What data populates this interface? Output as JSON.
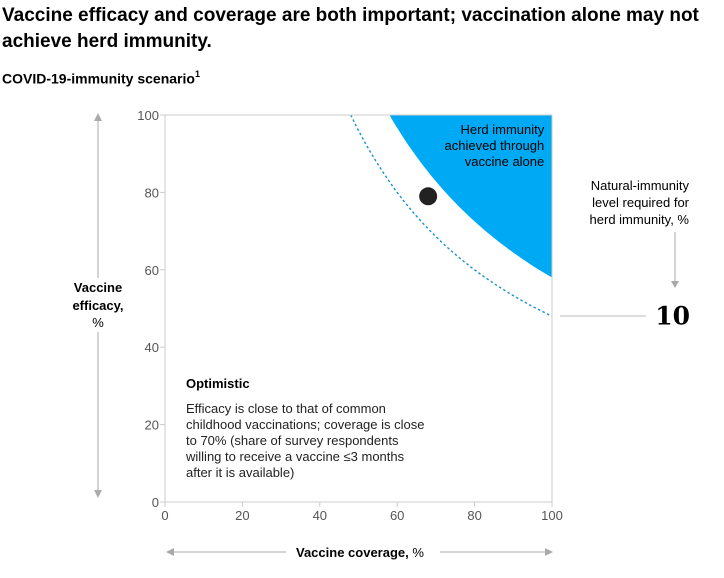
{
  "title": "Vaccine efficacy and coverage are both important; vaccination alone may not achieve herd immunity.",
  "subtitle": {
    "text": "COVID-19-immunity scenario",
    "footnote": "1"
  },
  "chart_data": {
    "type": "scatter",
    "xlabel": "Vaccine coverage, %",
    "ylabel": [
      "Vaccine",
      "efficacy,",
      "%"
    ],
    "xlim": [
      0,
      100
    ],
    "ylim": [
      0,
      100
    ],
    "xticks": [
      "0",
      "20",
      "40",
      "60",
      "80",
      "100"
    ],
    "yticks": [
      "0",
      "20",
      "40",
      "60",
      "80",
      "100"
    ],
    "region_label": [
      "Herd immunity",
      "achieved through",
      "vaccine alone"
    ],
    "region_boundary": {
      "x_start": 58,
      "y_end": 58
    },
    "dashed_boundary": {
      "x_start": 48,
      "y_end": 48
    },
    "point": {
      "x": 68,
      "y": 79
    },
    "annotation": {
      "heading": "Optimistic",
      "lines": [
        "Efficacy is close to that of common",
        "childhood vaccinations; coverage is close",
        "to 70% (share of survey respondents",
        "willing to receive a vaccine ≤3 months",
        "after it is available)"
      ]
    },
    "natural_immunity": {
      "label": [
        "Natural-immunity",
        "level required for",
        "herd immunity, %"
      ],
      "value": "10"
    }
  },
  "colors": {
    "region": "#00a9f4",
    "dashed": "#1a8fd1",
    "point": "#222222",
    "axis": "#cccccc",
    "text": "#000000",
    "tick": "#555555"
  }
}
